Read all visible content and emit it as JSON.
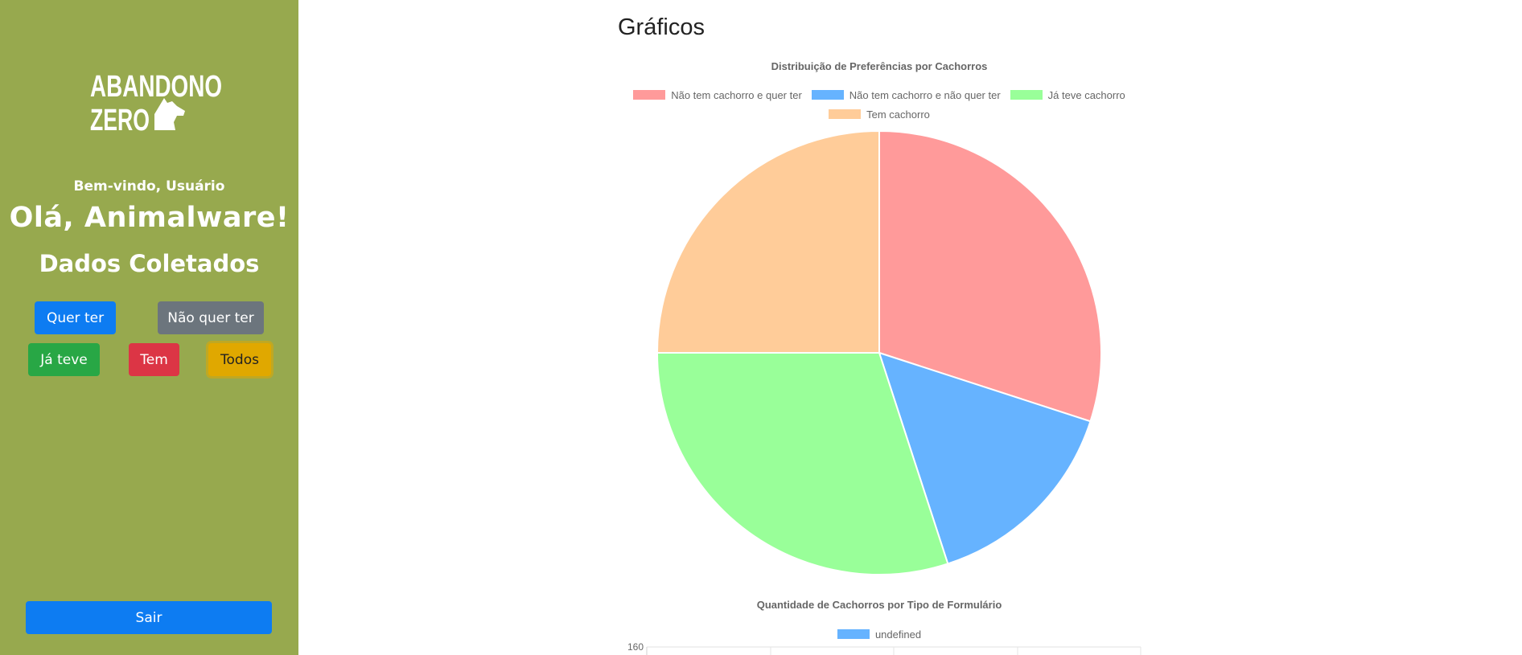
{
  "sidebar": {
    "logo_line1": "ABANDONO",
    "logo_line2": "ZERO",
    "welcome": "Bem-vindo, Usuário",
    "greeting": "Olá, Animalware!",
    "section_title": "Dados Coletados",
    "filters": {
      "quer_ter": "Quer ter",
      "nao_quer_ter": "Não quer ter",
      "ja_teve": "Já teve",
      "tem": "Tem",
      "todos": "Todos"
    },
    "logout": "Sair"
  },
  "main": {
    "title": "Gráficos"
  },
  "colors": {
    "sidebar": "#97a94e",
    "primary": "#0d7cf2",
    "secondary": "#6c757d",
    "success": "#28a745",
    "danger": "#dc3545",
    "warning": "#e0a800"
  },
  "chart_data": [
    {
      "type": "pie",
      "title": "Distribuição de Preferências por Cachorros",
      "legend_position": "top",
      "categories": [
        "Não tem cachorro e quer ter",
        "Não tem cachorro e não quer ter",
        "Já teve cachorro",
        "Tem cachorro"
      ],
      "values": [
        30,
        15,
        30,
        25
      ],
      "colors": [
        "#ff9a9a",
        "#66b3ff",
        "#99ff99",
        "#ffcc99"
      ]
    },
    {
      "type": "bar",
      "title": "Quantidade de Cachorros por Tipo de Formulário",
      "legend_position": "top",
      "series": [
        {
          "name": "undefined",
          "color": "#66b3ff",
          "values": []
        }
      ],
      "y_tick_top": "160",
      "grid": true
    }
  ]
}
